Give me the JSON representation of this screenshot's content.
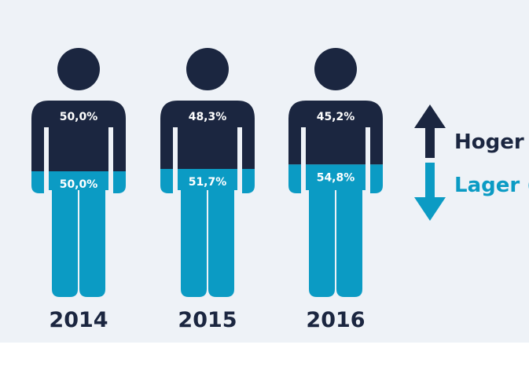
{
  "colors": {
    "upper": "#1b2640",
    "lower": "#0b9bc4",
    "background": "#eef2f7"
  },
  "legend": {
    "upper_label": "Hoger",
    "lower_label": "Lager ("
  },
  "chart_data": {
    "type": "pictograph",
    "categories": [
      "2014",
      "2015",
      "2016"
    ],
    "series": [
      {
        "name": "Hoger",
        "values": [
          50.0,
          48.3,
          45.2
        ],
        "labels": [
          "50,0%",
          "48,3%",
          "45,2%"
        ]
      },
      {
        "name": "Lager (",
        "values": [
          50.0,
          51.7,
          54.8
        ],
        "labels": [
          "50,0%",
          "51,7%",
          "54,8%"
        ]
      }
    ],
    "unit": "%"
  }
}
